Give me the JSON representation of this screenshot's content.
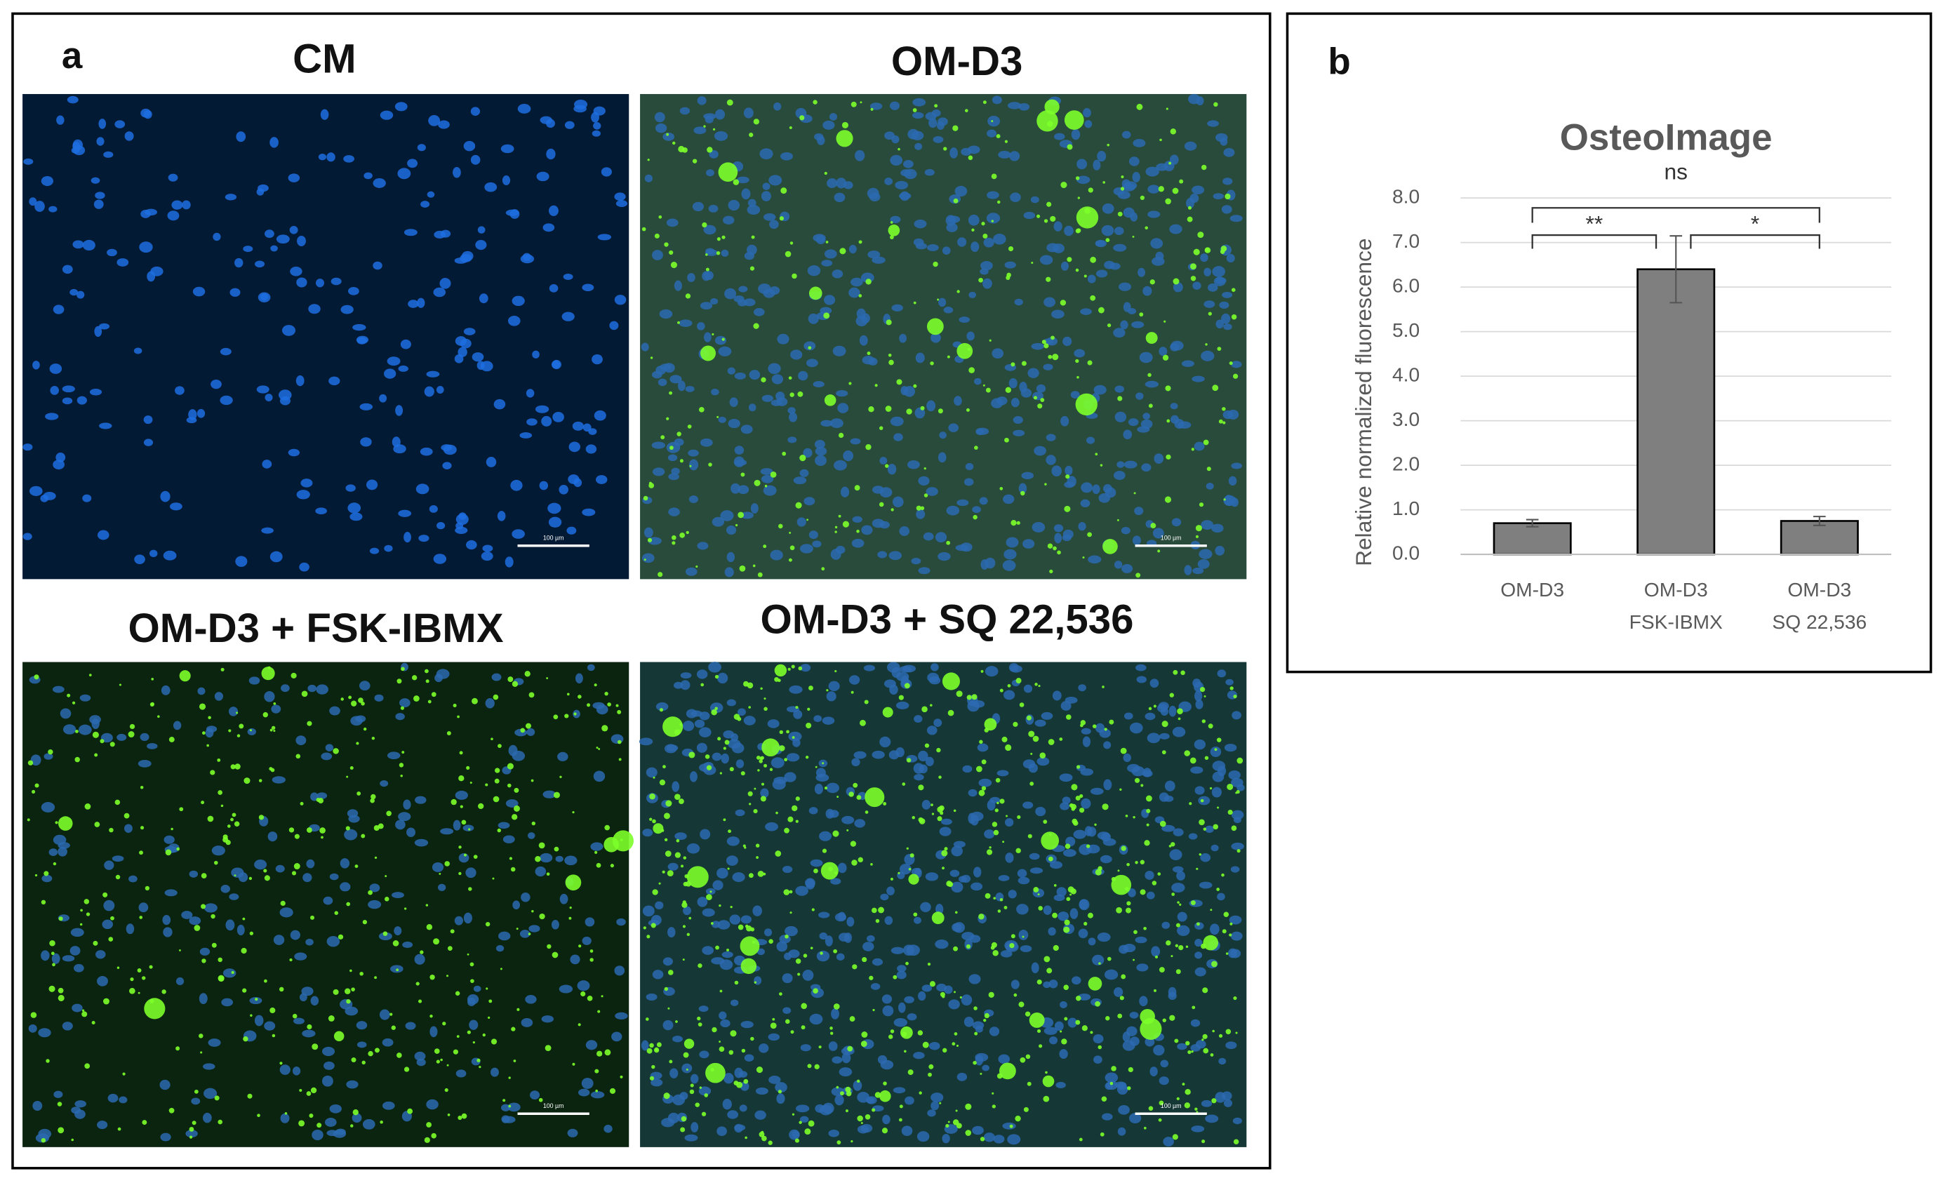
{
  "panel_a": {
    "label": "a",
    "images": [
      {
        "title": "CM",
        "scale_bar": "100 µm"
      },
      {
        "title": "OM-D3",
        "scale_bar": "100 µm"
      },
      {
        "title": "OM-D3 + FSK-IBMX",
        "scale_bar": "100 µm"
      },
      {
        "title": "OM-D3 + SQ 22,536",
        "scale_bar": "100 µm"
      }
    ]
  },
  "chart_data": {
    "type": "bar",
    "panel_label": "b",
    "title": "OsteoImage",
    "ylabel": "Relative normalized fluorescence",
    "categories": [
      [
        "OM-D3"
      ],
      [
        "OM-D3",
        "FSK-IBMX"
      ],
      [
        "OM-D3",
        "SQ 22,536"
      ]
    ],
    "values": [
      0.7,
      6.4,
      0.75
    ],
    "errors": [
      0.08,
      0.75,
      0.1
    ],
    "color": "#7f7f7f",
    "ylim": [
      0,
      8
    ],
    "yticks": [
      {
        "value": 0,
        "label": "0.0"
      },
      {
        "value": 1,
        "label": "1.0"
      },
      {
        "value": 2,
        "label": "2.0"
      },
      {
        "value": 3,
        "label": "3.0"
      },
      {
        "value": 4,
        "label": "4.0"
      },
      {
        "value": 5,
        "label": "5.0"
      },
      {
        "value": 6,
        "label": "6.0"
      },
      {
        "value": 7,
        "label": "7.0"
      },
      {
        "value": 8,
        "label": "8.0"
      }
    ],
    "grid": true,
    "significance": [
      {
        "from": 0,
        "to": 1,
        "label": "**"
      },
      {
        "from": 1,
        "to": 2,
        "label": "*"
      },
      {
        "from": 0,
        "to": 2,
        "label": "ns"
      }
    ]
  }
}
